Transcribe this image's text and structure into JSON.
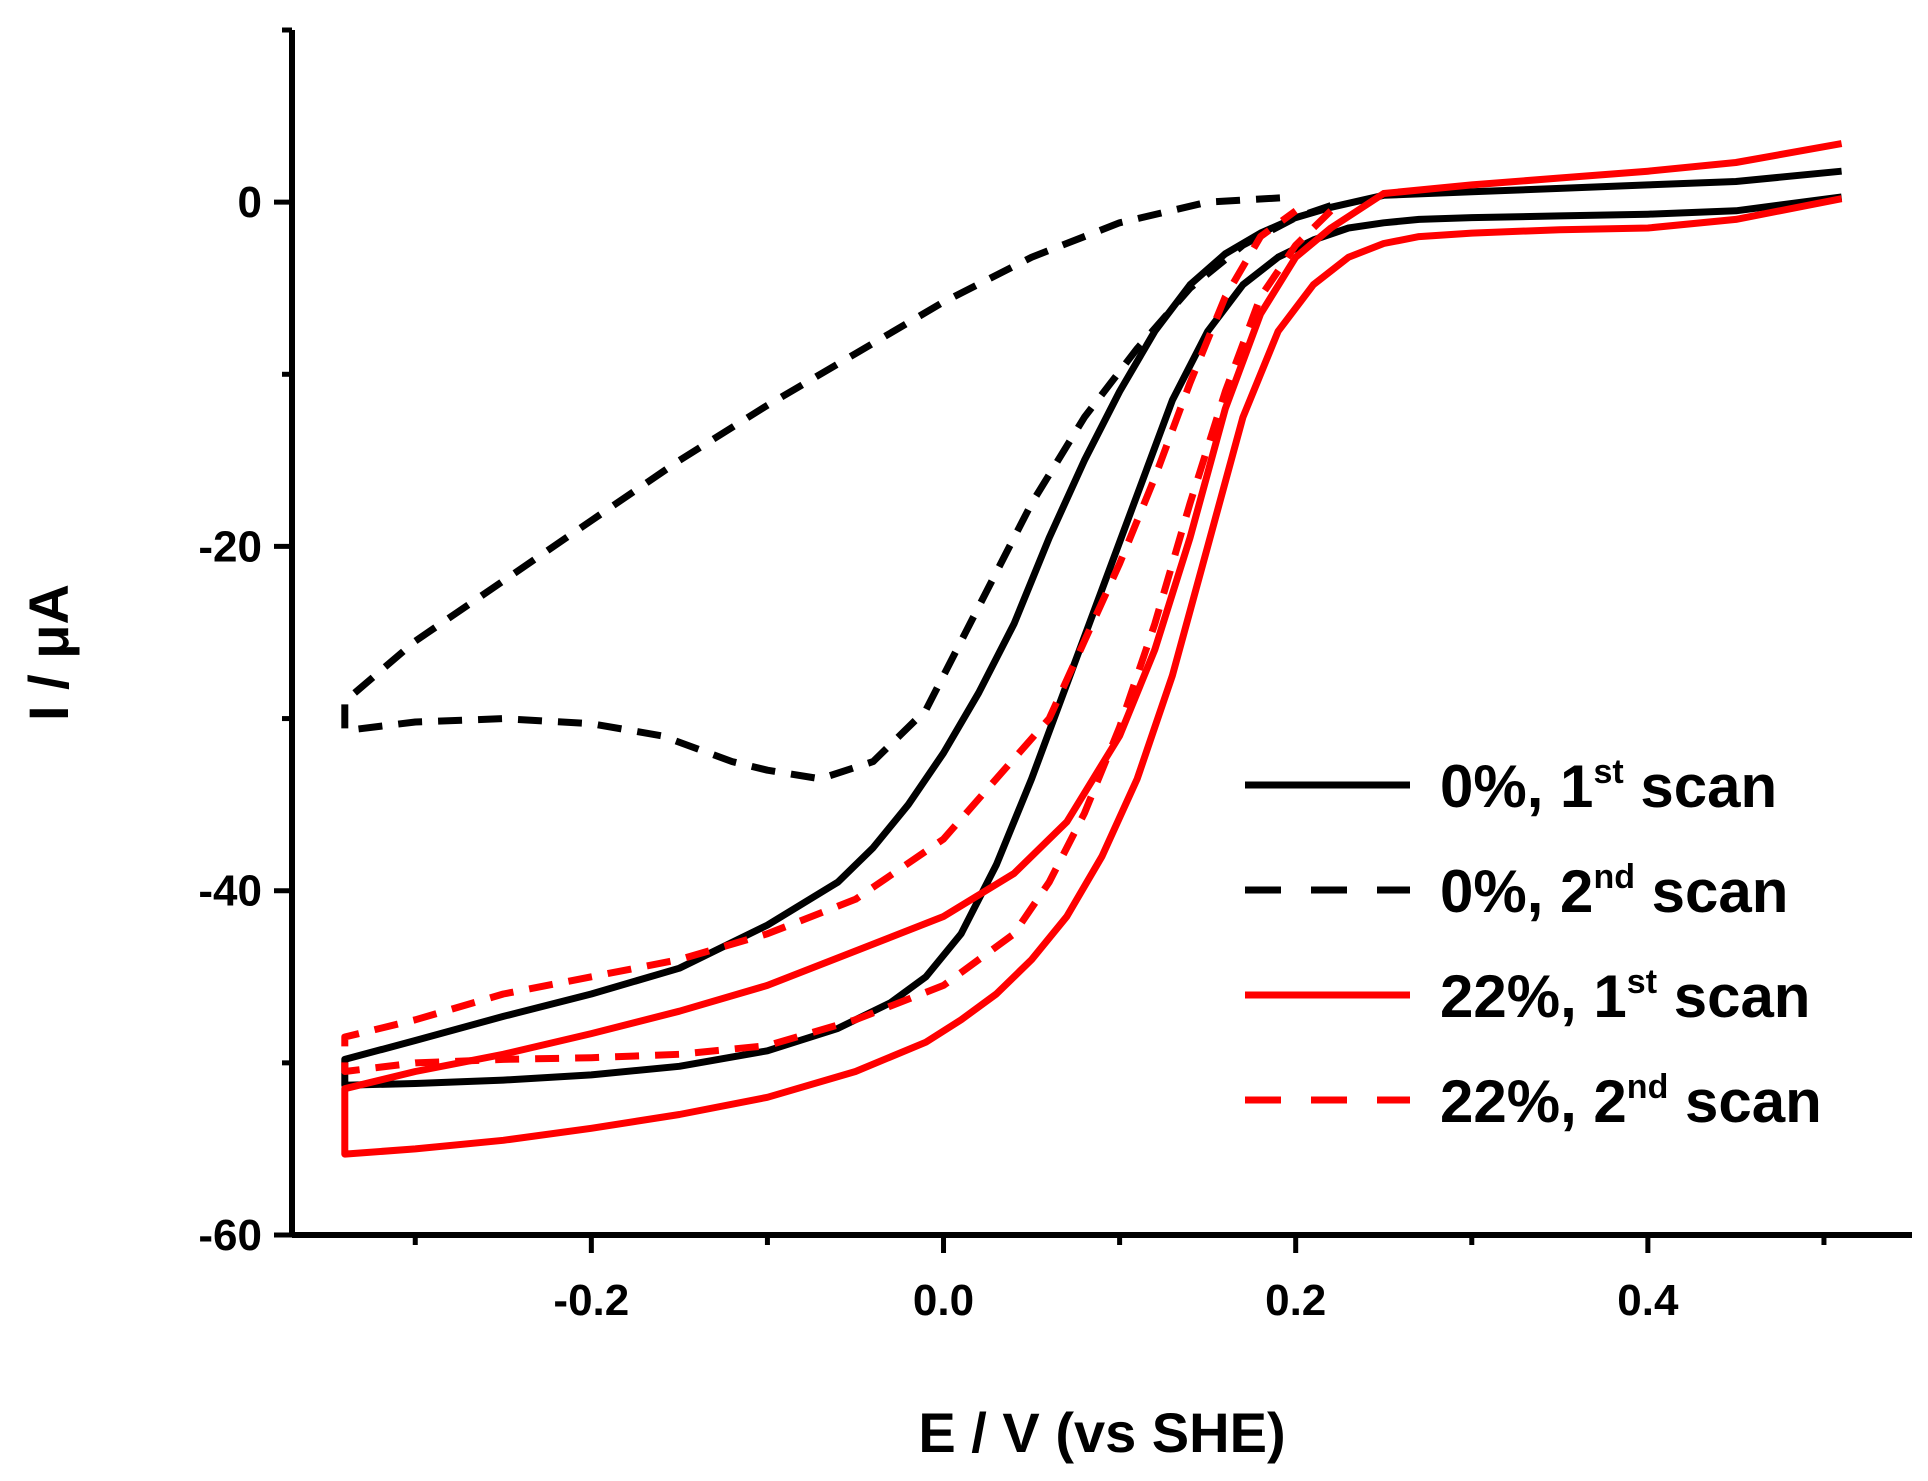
{
  "chart_data": {
    "type": "line",
    "title": "",
    "xlabel": "E / V (vs SHE)",
    "ylabel": "I / μA",
    "xlim": [
      -0.37,
      0.55
    ],
    "ylim": [
      -60,
      10
    ],
    "xticks": [
      -0.2,
      0.0,
      0.2,
      0.4
    ],
    "xtick_labels": [
      "-0.2",
      "0.0",
      "0.2",
      "0.4"
    ],
    "xminor": [
      -0.3,
      -0.1,
      0.1,
      0.3,
      0.5
    ],
    "yticks": [
      -60,
      -40,
      -20,
      0
    ],
    "ytick_labels": [
      "-60",
      "-40",
      "-20",
      "0"
    ],
    "yminor": [
      -50,
      -30,
      -10,
      10
    ],
    "grid": false,
    "legend_position": "right",
    "series": [
      {
        "name": "0%, 1st scan",
        "label_main": "0%, 1",
        "label_sup": "st",
        "label_end": " scan",
        "color": "#000000",
        "dash": "solid",
        "x": [
          0.51,
          0.45,
          0.4,
          0.35,
          0.3,
          0.27,
          0.25,
          0.23,
          0.21,
          0.19,
          0.17,
          0.15,
          0.13,
          0.11,
          0.09,
          0.07,
          0.05,
          0.03,
          0.01,
          -0.01,
          -0.03,
          -0.06,
          -0.1,
          -0.15,
          -0.2,
          -0.25,
          -0.3,
          -0.34,
          -0.34,
          -0.3,
          -0.25,
          -0.2,
          -0.15,
          -0.1,
          -0.06,
          -0.04,
          -0.02,
          0.0,
          0.02,
          0.04,
          0.06,
          0.08,
          0.1,
          0.12,
          0.14,
          0.16,
          0.18,
          0.2,
          0.22,
          0.25,
          0.3,
          0.35,
          0.4,
          0.45,
          0.51
        ],
        "y": [
          0.3,
          -0.5,
          -0.7,
          -0.8,
          -0.9,
          -1.0,
          -1.2,
          -1.5,
          -2.2,
          -3.2,
          -4.8,
          -7.5,
          -11.5,
          -17.0,
          -22.5,
          -28.0,
          -33.5,
          -38.5,
          -42.5,
          -45.0,
          -46.5,
          -48.0,
          -49.3,
          -50.2,
          -50.7,
          -51.0,
          -51.2,
          -51.3,
          -49.8,
          -48.7,
          -47.3,
          -46.0,
          -44.5,
          -42.0,
          -39.5,
          -37.5,
          -35.0,
          -32.0,
          -28.5,
          -24.5,
          -19.5,
          -15.0,
          -11.0,
          -7.5,
          -4.8,
          -3.0,
          -1.8,
          -0.9,
          -0.3,
          0.4,
          0.6,
          0.8,
          1.0,
          1.2,
          1.8
        ]
      },
      {
        "name": "0%, 2nd scan",
        "label_main": "0%, 2",
        "label_sup": "nd",
        "label_end": " scan",
        "color": "#000000",
        "dash": "dashed",
        "x": [
          0.22,
          0.2,
          0.17,
          0.14,
          0.11,
          0.08,
          0.05,
          0.02,
          -0.01,
          -0.04,
          -0.07,
          -0.1,
          -0.12,
          -0.16,
          -0.2,
          -0.25,
          -0.3,
          -0.34,
          -0.34,
          -0.3,
          -0.25,
          -0.2,
          -0.15,
          -0.1,
          -0.05,
          0.0,
          0.05,
          0.1,
          0.15,
          0.2
        ],
        "y": [
          -0.2,
          -0.9,
          -2.5,
          -5.0,
          -8.5,
          -12.5,
          -17.5,
          -23.5,
          -29.5,
          -32.5,
          -33.5,
          -33.0,
          -32.5,
          -31.0,
          -30.3,
          -30.0,
          -30.2,
          -30.7,
          -29.0,
          -25.5,
          -22.0,
          -18.5,
          -15.0,
          -11.8,
          -8.8,
          -5.8,
          -3.2,
          -1.2,
          0.0,
          0.3
        ]
      },
      {
        "name": "22%, 1st scan",
        "label_main": "22%, 1",
        "label_sup": "st",
        "label_end": " scan",
        "color": "#ff0000",
        "dash": "solid",
        "x": [
          0.51,
          0.45,
          0.4,
          0.35,
          0.3,
          0.27,
          0.25,
          0.23,
          0.21,
          0.19,
          0.17,
          0.15,
          0.13,
          0.11,
          0.09,
          0.07,
          0.05,
          0.03,
          0.01,
          -0.01,
          -0.05,
          -0.1,
          -0.15,
          -0.2,
          -0.25,
          -0.3,
          -0.34,
          -0.34,
          -0.3,
          -0.25,
          -0.2,
          -0.15,
          -0.1,
          -0.05,
          0.0,
          0.04,
          0.07,
          0.1,
          0.12,
          0.14,
          0.16,
          0.18,
          0.2,
          0.22,
          0.25,
          0.3,
          0.35,
          0.4,
          0.45,
          0.51
        ],
        "y": [
          0.2,
          -1.0,
          -1.5,
          -1.6,
          -1.8,
          -2.0,
          -2.4,
          -3.2,
          -4.8,
          -7.5,
          -12.5,
          -20.0,
          -27.5,
          -33.5,
          -38.0,
          -41.5,
          -44.0,
          -46.0,
          -47.5,
          -48.8,
          -50.5,
          -52.0,
          -53.0,
          -53.8,
          -54.5,
          -55.0,
          -55.3,
          -51.5,
          -50.5,
          -49.5,
          -48.3,
          -47.0,
          -45.5,
          -43.5,
          -41.5,
          -39.0,
          -36.0,
          -31.0,
          -26.0,
          -19.5,
          -12.0,
          -6.5,
          -3.2,
          -1.5,
          0.5,
          1.0,
          1.4,
          1.8,
          2.3,
          3.4
        ]
      },
      {
        "name": "22%, 2nd scan",
        "label_main": "22%, 2",
        "label_sup": "nd",
        "label_end": " scan",
        "color": "#ff0000",
        "dash": "dashed",
        "x": [
          0.22,
          0.2,
          0.18,
          0.16,
          0.14,
          0.12,
          0.1,
          0.08,
          0.06,
          0.04,
          0.0,
          -0.05,
          -0.1,
          -0.15,
          -0.2,
          -0.25,
          -0.3,
          -0.34,
          -0.34,
          -0.3,
          -0.25,
          -0.2,
          -0.15,
          -0.1,
          -0.05,
          0.0,
          0.03,
          0.06,
          0.08,
          0.1,
          0.12,
          0.14,
          0.16,
          0.18,
          0.2
        ],
        "y": [
          -0.5,
          -2.5,
          -5.5,
          -11.0,
          -17.5,
          -24.5,
          -30.5,
          -35.5,
          -39.5,
          -42.5,
          -45.5,
          -47.5,
          -49.0,
          -49.5,
          -49.7,
          -49.8,
          -50.0,
          -50.5,
          -48.5,
          -47.5,
          -46.0,
          -45.0,
          -44.0,
          -42.5,
          -40.5,
          -37.0,
          -33.5,
          -30.0,
          -25.5,
          -21.0,
          -16.0,
          -10.5,
          -5.5,
          -2.0,
          -0.5
        ]
      }
    ]
  }
}
